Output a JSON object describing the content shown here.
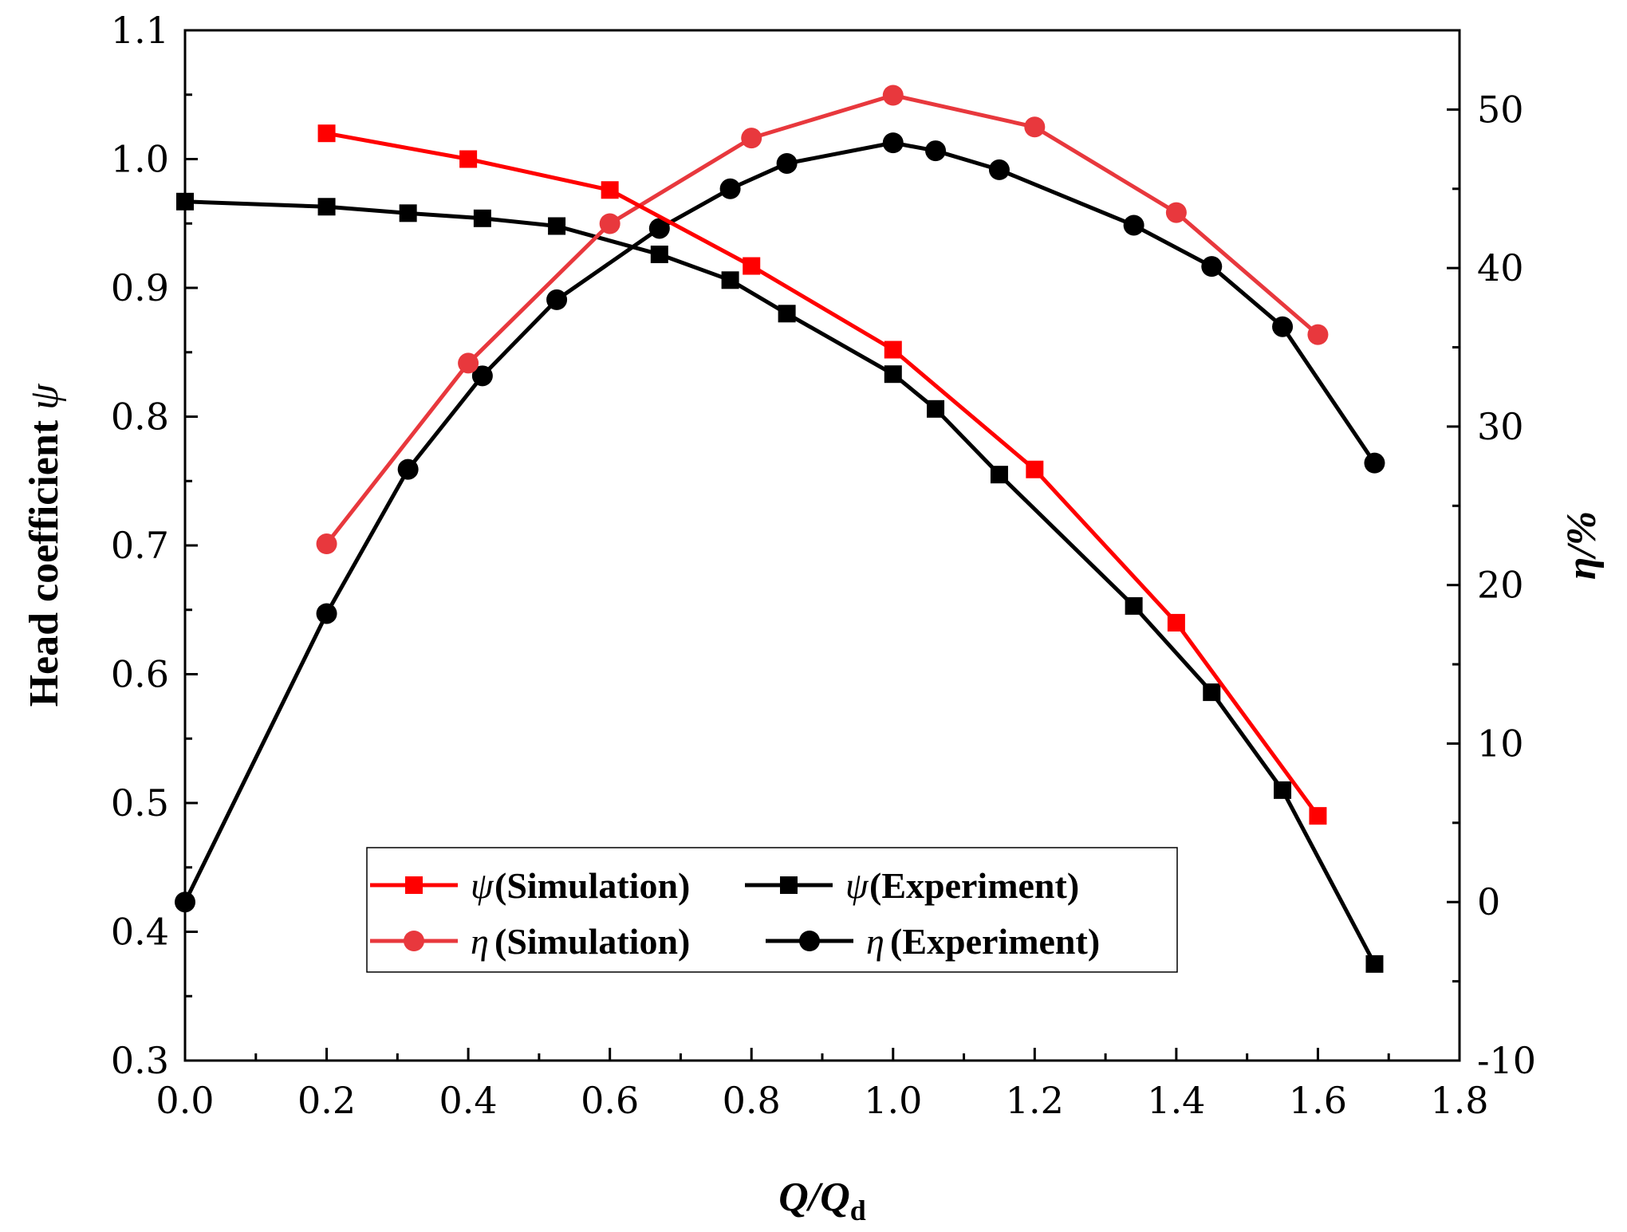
{
  "chart_data": {
    "type": "line",
    "xlabel": "Q/Q",
    "xlabel_sub": "d",
    "ylabel": "Head coefficient ",
    "ylabel_symbol": "ψ",
    "y2label": "η/%",
    "xlim": [
      0.0,
      1.8
    ],
    "ylim": [
      0.3,
      1.1
    ],
    "y2lim": [
      -10,
      55
    ],
    "x_ticks": [
      "0.0",
      "0.2",
      "0.4",
      "0.6",
      "0.8",
      "1.0",
      "1.2",
      "1.4",
      "1.6",
      "1.8"
    ],
    "y_ticks": [
      "0.3",
      "0.4",
      "0.5",
      "0.6",
      "0.7",
      "0.8",
      "0.9",
      "1.0",
      "1.1"
    ],
    "y2_ticks": [
      "-10",
      "0",
      "10",
      "20",
      "30",
      "40",
      "50"
    ],
    "series": [
      {
        "name": "ψ (Simulation)",
        "symbol": "ψ",
        "label": "(Simulation)",
        "axis": "left",
        "marker": "square",
        "color": "#ff0000",
        "x": [
          0.2,
          0.4,
          0.6,
          0.8,
          1.0,
          1.2,
          1.4,
          1.6
        ],
        "y": [
          1.02,
          1.0,
          0.976,
          0.917,
          0.852,
          0.759,
          0.64,
          0.49
        ]
      },
      {
        "name": "ψ (Experiment)",
        "symbol": "ψ",
        "label": "(Experiment)",
        "axis": "left",
        "marker": "square",
        "color": "#000000",
        "x": [
          0.0,
          0.2,
          0.315,
          0.42,
          0.525,
          0.67,
          0.77,
          0.85,
          1.0,
          1.06,
          1.15,
          1.34,
          1.45,
          1.55,
          1.68
        ],
        "y": [
          0.967,
          0.963,
          0.958,
          0.954,
          0.948,
          0.926,
          0.906,
          0.88,
          0.833,
          0.806,
          0.755,
          0.653,
          0.586,
          0.51,
          0.375
        ]
      },
      {
        "name": "η (Simulation)",
        "symbol": "η",
        "label": "(Simulation)",
        "axis": "right",
        "marker": "circle",
        "color": "#e8383d",
        "x": [
          0.2,
          0.4,
          0.6,
          0.8,
          1.0,
          1.2,
          1.4,
          1.6
        ],
        "y": [
          22.6,
          34.0,
          42.8,
          48.2,
          50.9,
          48.9,
          43.5,
          35.8
        ]
      },
      {
        "name": "η (Experiment)",
        "symbol": "η",
        "label": "(Experiment)",
        "axis": "right",
        "marker": "circle",
        "color": "#000000",
        "x": [
          0.0,
          0.2,
          0.315,
          0.42,
          0.525,
          0.67,
          0.77,
          0.85,
          1.0,
          1.06,
          1.15,
          1.34,
          1.45,
          1.55,
          1.68
        ],
        "y": [
          0.0,
          18.2,
          27.3,
          33.2,
          38.0,
          42.5,
          45.0,
          46.6,
          47.9,
          47.4,
          46.2,
          42.7,
          40.1,
          36.3,
          27.7
        ]
      }
    ],
    "legend": {
      "location": "lower-center"
    }
  }
}
